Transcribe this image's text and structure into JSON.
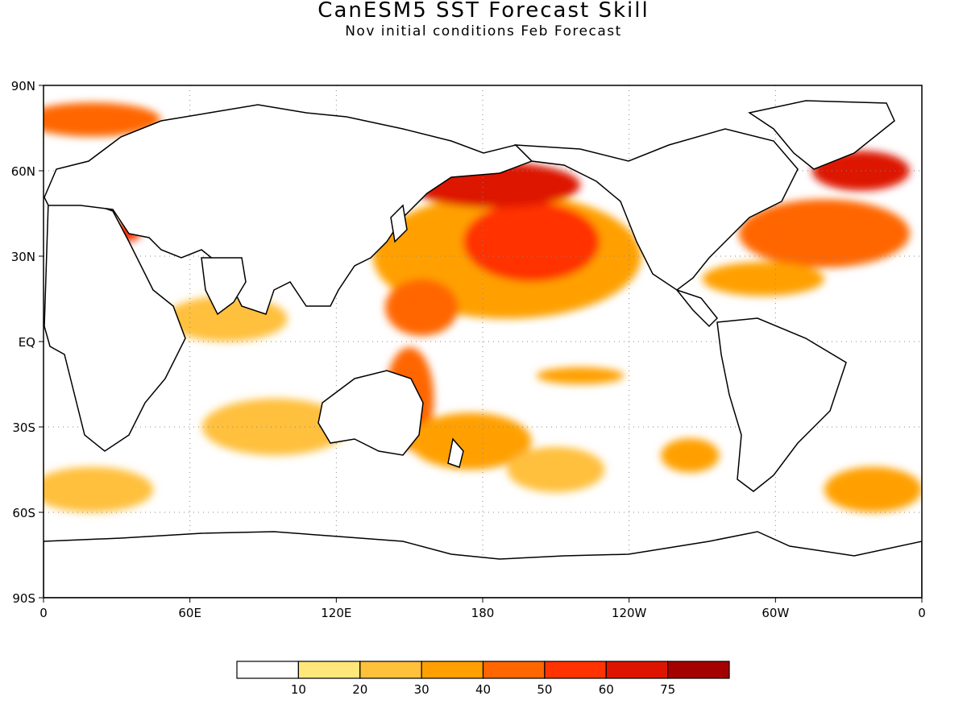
{
  "title": "CanESM5 SST Forecast Skill",
  "subtitle": "Nov initial conditions  Feb Forecast",
  "chart_data": {
    "type": "heatmap",
    "projection": "equirectangular",
    "x_ticks": [
      "0",
      "60E",
      "120E",
      "180",
      "120W",
      "60W",
      "0"
    ],
    "y_ticks": [
      "90N",
      "60N",
      "30N",
      "EQ",
      "30S",
      "60S",
      "90S"
    ],
    "lon_range": [
      0,
      360
    ],
    "lat_range": [
      -90,
      90
    ],
    "grid": "dotted",
    "colorbar": {
      "orientation": "horizontal",
      "position": "bottom",
      "levels": [
        "10",
        "20",
        "30",
        "40",
        "50",
        "60",
        "75"
      ],
      "colors": [
        "#ffffff",
        "#ffe77a",
        "#ffc03c",
        "#ffa000",
        "#ff6600",
        "#ff3300",
        "#dd1500",
        "#a50000"
      ]
    },
    "regions": [
      {
        "lon": 190,
        "lat": 30,
        "rx": 55,
        "ry": 22,
        "level": 3
      },
      {
        "lon": 200,
        "lat": 35,
        "rx": 28,
        "ry": 14,
        "level": 5
      },
      {
        "lon": 185,
        "lat": 55,
        "rx": 35,
        "ry": 8,
        "level": 6
      },
      {
        "lon": 155,
        "lat": 12,
        "rx": 15,
        "ry": 10,
        "level": 4
      },
      {
        "lon": 150,
        "lat": -20,
        "rx": 10,
        "ry": 18,
        "level": 4
      },
      {
        "lon": 175,
        "lat": -35,
        "rx": 25,
        "ry": 10,
        "level": 3
      },
      {
        "lon": 220,
        "lat": -12,
        "rx": 18,
        "ry": 3,
        "level": 3
      },
      {
        "lon": 320,
        "lat": 38,
        "rx": 35,
        "ry": 12,
        "level": 4
      },
      {
        "lon": 335,
        "lat": 60,
        "rx": 20,
        "ry": 7,
        "level": 6
      },
      {
        "lon": 295,
        "lat": 22,
        "rx": 25,
        "ry": 6,
        "level": 3
      },
      {
        "lon": 25,
        "lat": 38,
        "rx": 15,
        "ry": 4,
        "level": 5
      },
      {
        "lon": 20,
        "lat": 78,
        "rx": 28,
        "ry": 6,
        "level": 4
      },
      {
        "lon": 75,
        "lat": 8,
        "rx": 25,
        "ry": 8,
        "level": 2
      },
      {
        "lon": 95,
        "lat": -30,
        "rx": 30,
        "ry": 10,
        "level": 2
      },
      {
        "lon": 20,
        "lat": -52,
        "rx": 25,
        "ry": 8,
        "level": 2
      },
      {
        "lon": 340,
        "lat": -52,
        "rx": 20,
        "ry": 8,
        "level": 3
      },
      {
        "lon": 265,
        "lat": -40,
        "rx": 12,
        "ry": 6,
        "level": 3
      },
      {
        "lon": 210,
        "lat": -45,
        "rx": 20,
        "ry": 8,
        "level": 2
      }
    ]
  }
}
